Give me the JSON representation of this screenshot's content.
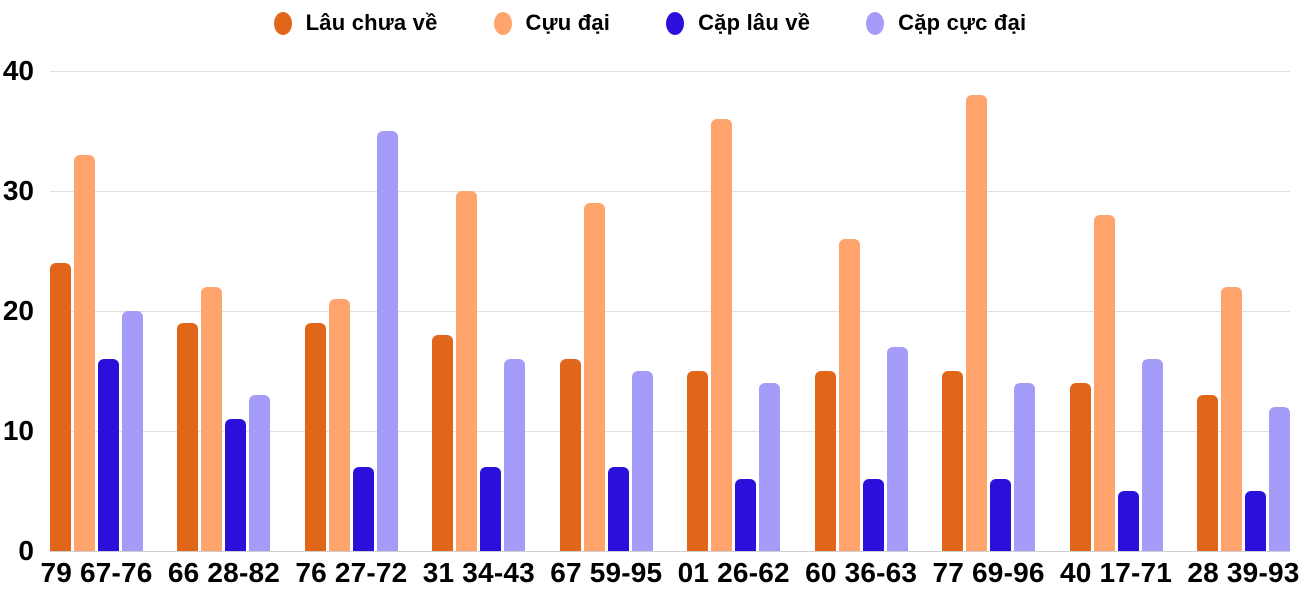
{
  "chart_data": {
    "type": "bar",
    "title": "",
    "xlabel": "",
    "ylabel": "",
    "categories": [
      "79 67-76",
      "66 28-82",
      "76 27-72",
      "31 34-43",
      "67 59-95",
      "01 26-62",
      "60 36-63",
      "77 69-96",
      "40 17-71",
      "28 39-93"
    ],
    "series": [
      {
        "name": "Lâu chưa về",
        "color": "#E2661A",
        "values": [
          24,
          19,
          19,
          18,
          16,
          15,
          15,
          15,
          14,
          13
        ]
      },
      {
        "name": "Cựu đại",
        "color": "#FFA46C",
        "values": [
          33,
          22,
          21,
          30,
          29,
          36,
          26,
          38,
          28,
          22
        ]
      },
      {
        "name": "Cặp lâu về",
        "color": "#2B10DC",
        "values": [
          16,
          11,
          7,
          7,
          7,
          6,
          6,
          6,
          5,
          5
        ]
      },
      {
        "name": "Cặp cực đại",
        "color": "#A49CF8",
        "values": [
          20,
          13,
          35,
          16,
          15,
          14,
          17,
          14,
          16,
          12
        ]
      }
    ],
    "ylim": [
      0,
      40
    ],
    "yticks": [
      0,
      10,
      20,
      30,
      40
    ],
    "grid": true,
    "legend_position": "top",
    "background": "#ffffff",
    "gridline_color": "#e0e0e0"
  }
}
